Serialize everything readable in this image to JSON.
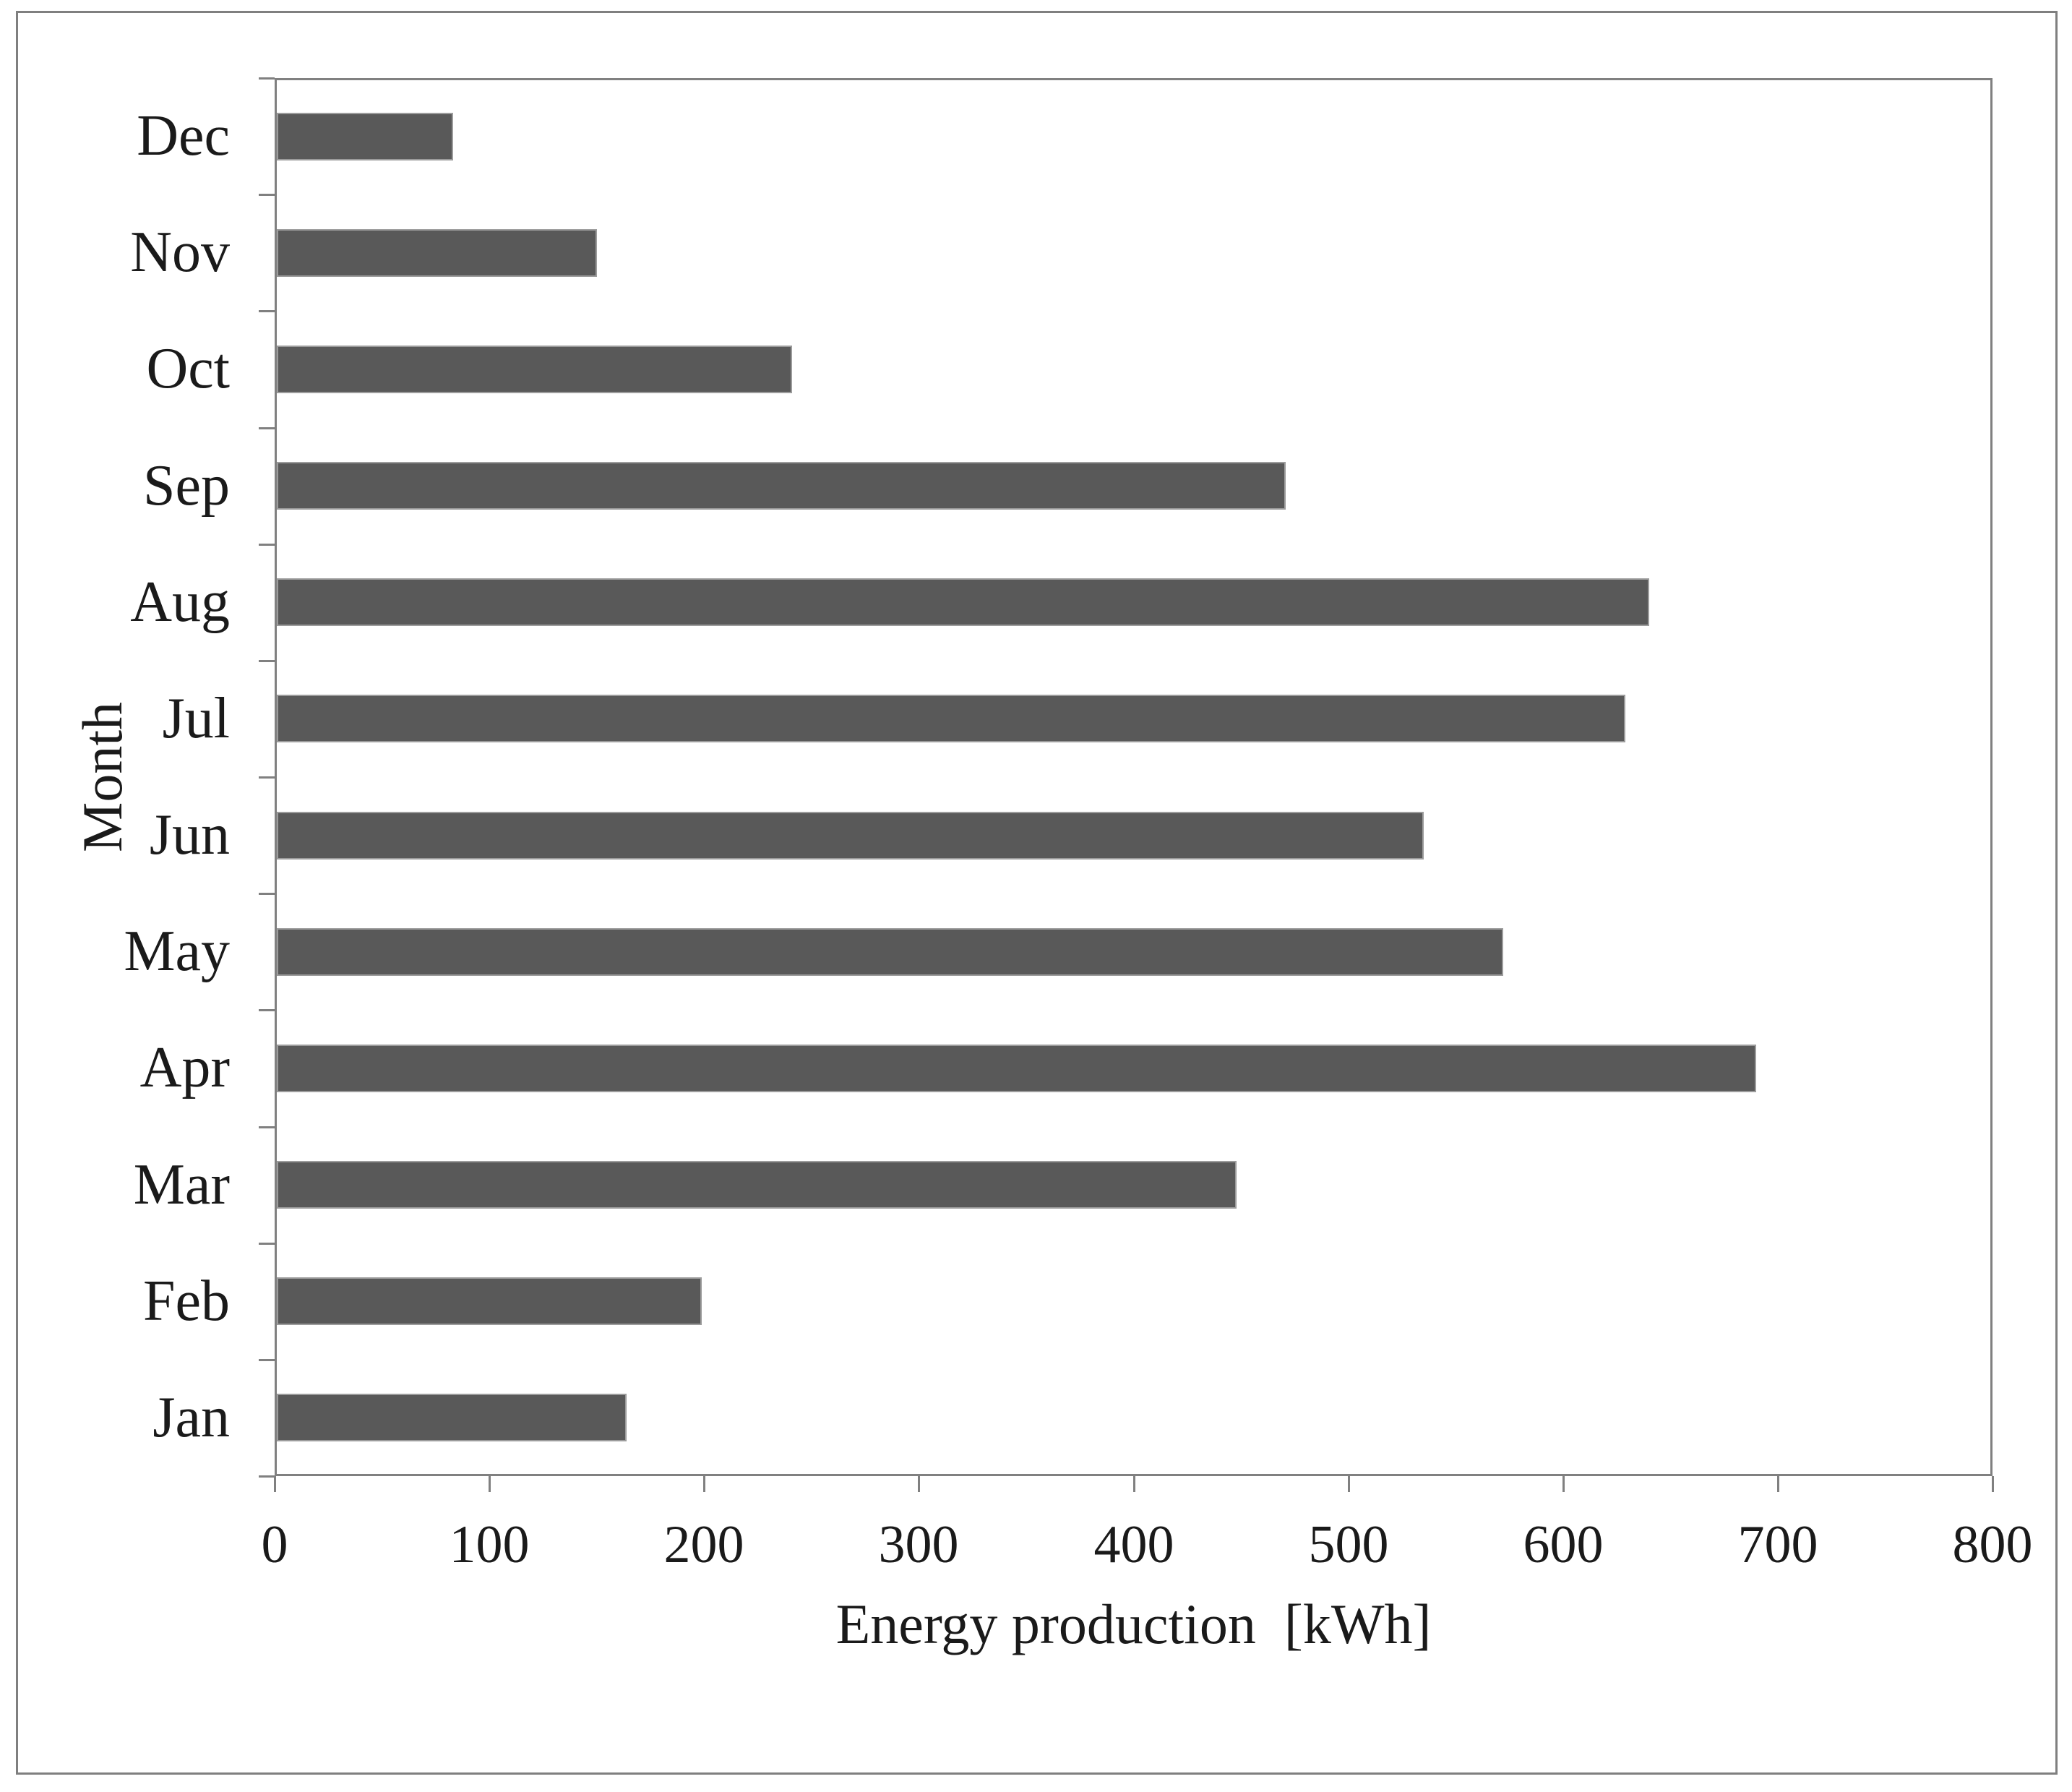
{
  "chart_data": {
    "type": "bar",
    "orientation": "horizontal",
    "title": "",
    "xlabel": "Energy production  [kWh]",
    "ylabel": "Month",
    "categories_top_to_bottom": [
      "Dec",
      "Nov",
      "Oct",
      "Sep",
      "Aug",
      "Jul",
      "Jun",
      "May",
      "Apr",
      "Mar",
      "Feb",
      "Jan"
    ],
    "values_top_to_bottom": [
      82,
      149,
      240,
      470,
      639,
      628,
      534,
      571,
      689,
      447,
      198,
      163
    ],
    "series": [
      {
        "name": "Energy production",
        "categories": [
          "Jan",
          "Feb",
          "Mar",
          "Apr",
          "May",
          "Jun",
          "Jul",
          "Aug",
          "Sep",
          "Oct",
          "Nov",
          "Dec"
        ],
        "values": [
          163,
          198,
          447,
          689,
          571,
          534,
          628,
          639,
          470,
          240,
          149,
          82
        ]
      }
    ],
    "xlim": [
      0,
      800
    ],
    "xticks": [
      0,
      100,
      200,
      300,
      400,
      500,
      600,
      700,
      800
    ],
    "grid": false,
    "legend": null,
    "colors": {
      "bar_fill": "#595959",
      "bar_border": "#9c9c9c",
      "axis_line": "#808080",
      "figure_border": "#7f7f7f",
      "text": "#1a1a1a",
      "background": "#ffffff"
    }
  }
}
